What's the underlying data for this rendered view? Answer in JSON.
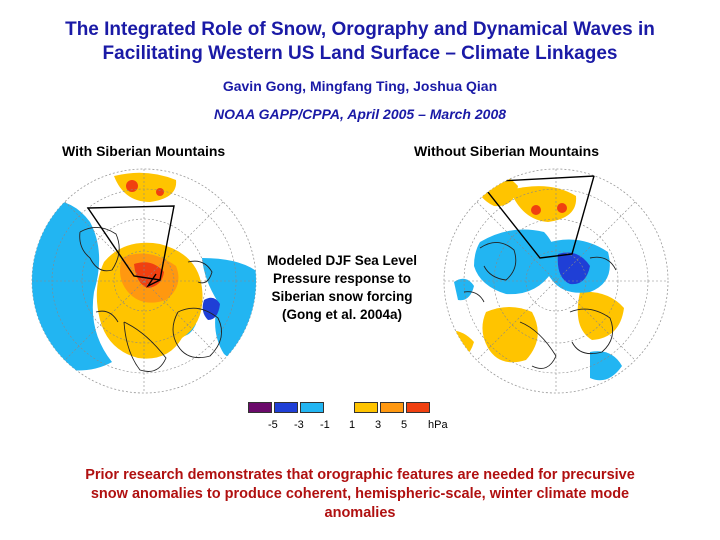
{
  "title_lines": [
    "The Integrated Role of Snow, Orography and Dynamical Waves in",
    "Facilitating Western US Land Surface – Climate Linkages"
  ],
  "authors": "Gavin Gong, Mingfang Ting, Joshua Qian",
  "project": "NOAA GAPP/CPPA,  April 2005 – March 2008",
  "maps": {
    "left_label": "With Siberian Mountains",
    "right_label": "Without Siberian Mountains"
  },
  "caption": "Modeled DJF Sea Level Pressure response to Siberian snow forcing (Gong et al. 2004a)",
  "legend": {
    "colors": [
      "#6b0a6b",
      "#1f3fd6",
      "#22b5f2",
      "#ffc400",
      "#ff9810",
      "#f04010"
    ],
    "ticks": [
      "-5",
      "-3",
      "-1",
      "1",
      "3",
      "5"
    ],
    "unit": "hPa"
  },
  "conclusion_lines": [
    "Prior research demonstrates that orographic features are needed for precursive",
    "snow anomalies to produce coherent, hemispheric-scale, winter climate mode",
    "anomalies"
  ]
}
